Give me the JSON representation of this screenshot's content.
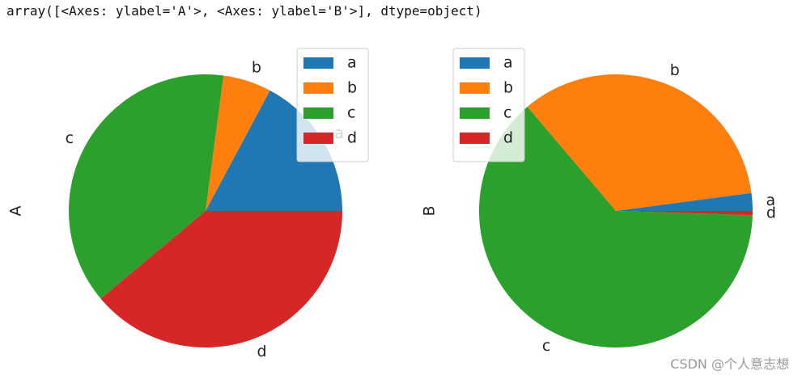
{
  "output_text": "array([<Axes: ylabel='A'>, <Axes: ylabel='B'>], dtype=object)",
  "chart_data": [
    {
      "type": "pie",
      "ylabel": "A",
      "categories": [
        "a",
        "b",
        "c",
        "d"
      ],
      "values": [
        17.2,
        5.7,
        38.2,
        38.9
      ],
      "colors": [
        "#1f77b4",
        "#ff7f0e",
        "#2ca02c",
        "#d62728"
      ],
      "legend": "upper left"
    },
    {
      "type": "pie",
      "ylabel": "B",
      "categories": [
        "a",
        "b",
        "c",
        "d"
      ],
      "values": [
        2.1,
        34.1,
        63.3,
        0.5
      ],
      "colors": [
        "#1f77b4",
        "#ff7f0e",
        "#2ca02c",
        "#d62728"
      ],
      "legend": "upper left"
    }
  ],
  "watermark": "CSDN @个人意志想"
}
